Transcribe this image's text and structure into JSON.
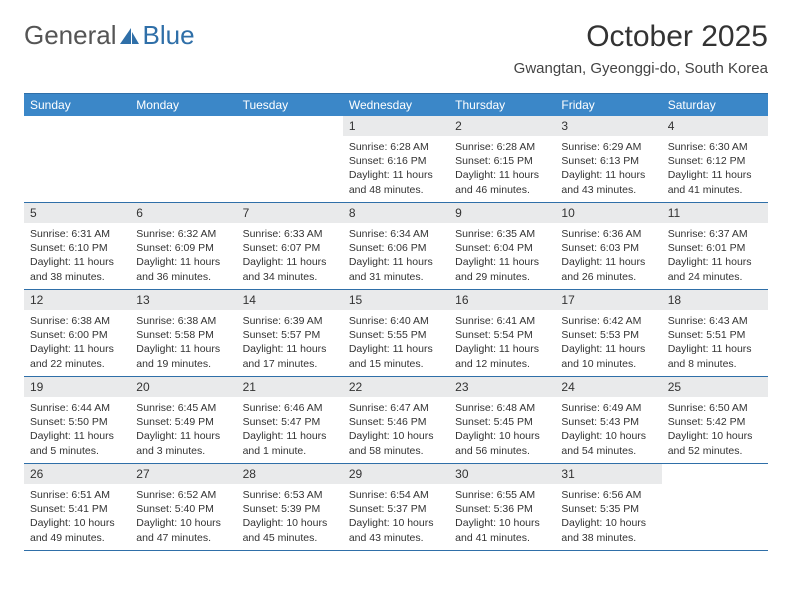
{
  "logo": {
    "general": "General",
    "blue": "Blue"
  },
  "title": "October 2025",
  "location": "Gwangtan, Gyeonggi-do, South Korea",
  "colors": {
    "header_bg": "#3b87c8",
    "border": "#2f6fa8",
    "daynum_bg": "#e9eaeb",
    "text": "#333333",
    "white": "#ffffff"
  },
  "day_names": [
    "Sunday",
    "Monday",
    "Tuesday",
    "Wednesday",
    "Thursday",
    "Friday",
    "Saturday"
  ],
  "weeks": [
    [
      {
        "n": "",
        "sr": "",
        "ss": "",
        "dl": ""
      },
      {
        "n": "",
        "sr": "",
        "ss": "",
        "dl": ""
      },
      {
        "n": "",
        "sr": "",
        "ss": "",
        "dl": ""
      },
      {
        "n": "1",
        "sr": "Sunrise: 6:28 AM",
        "ss": "Sunset: 6:16 PM",
        "dl": "Daylight: 11 hours and 48 minutes."
      },
      {
        "n": "2",
        "sr": "Sunrise: 6:28 AM",
        "ss": "Sunset: 6:15 PM",
        "dl": "Daylight: 11 hours and 46 minutes."
      },
      {
        "n": "3",
        "sr": "Sunrise: 6:29 AM",
        "ss": "Sunset: 6:13 PM",
        "dl": "Daylight: 11 hours and 43 minutes."
      },
      {
        "n": "4",
        "sr": "Sunrise: 6:30 AM",
        "ss": "Sunset: 6:12 PM",
        "dl": "Daylight: 11 hours and 41 minutes."
      }
    ],
    [
      {
        "n": "5",
        "sr": "Sunrise: 6:31 AM",
        "ss": "Sunset: 6:10 PM",
        "dl": "Daylight: 11 hours and 38 minutes."
      },
      {
        "n": "6",
        "sr": "Sunrise: 6:32 AM",
        "ss": "Sunset: 6:09 PM",
        "dl": "Daylight: 11 hours and 36 minutes."
      },
      {
        "n": "7",
        "sr": "Sunrise: 6:33 AM",
        "ss": "Sunset: 6:07 PM",
        "dl": "Daylight: 11 hours and 34 minutes."
      },
      {
        "n": "8",
        "sr": "Sunrise: 6:34 AM",
        "ss": "Sunset: 6:06 PM",
        "dl": "Daylight: 11 hours and 31 minutes."
      },
      {
        "n": "9",
        "sr": "Sunrise: 6:35 AM",
        "ss": "Sunset: 6:04 PM",
        "dl": "Daylight: 11 hours and 29 minutes."
      },
      {
        "n": "10",
        "sr": "Sunrise: 6:36 AM",
        "ss": "Sunset: 6:03 PM",
        "dl": "Daylight: 11 hours and 26 minutes."
      },
      {
        "n": "11",
        "sr": "Sunrise: 6:37 AM",
        "ss": "Sunset: 6:01 PM",
        "dl": "Daylight: 11 hours and 24 minutes."
      }
    ],
    [
      {
        "n": "12",
        "sr": "Sunrise: 6:38 AM",
        "ss": "Sunset: 6:00 PM",
        "dl": "Daylight: 11 hours and 22 minutes."
      },
      {
        "n": "13",
        "sr": "Sunrise: 6:38 AM",
        "ss": "Sunset: 5:58 PM",
        "dl": "Daylight: 11 hours and 19 minutes."
      },
      {
        "n": "14",
        "sr": "Sunrise: 6:39 AM",
        "ss": "Sunset: 5:57 PM",
        "dl": "Daylight: 11 hours and 17 minutes."
      },
      {
        "n": "15",
        "sr": "Sunrise: 6:40 AM",
        "ss": "Sunset: 5:55 PM",
        "dl": "Daylight: 11 hours and 15 minutes."
      },
      {
        "n": "16",
        "sr": "Sunrise: 6:41 AM",
        "ss": "Sunset: 5:54 PM",
        "dl": "Daylight: 11 hours and 12 minutes."
      },
      {
        "n": "17",
        "sr": "Sunrise: 6:42 AM",
        "ss": "Sunset: 5:53 PM",
        "dl": "Daylight: 11 hours and 10 minutes."
      },
      {
        "n": "18",
        "sr": "Sunrise: 6:43 AM",
        "ss": "Sunset: 5:51 PM",
        "dl": "Daylight: 11 hours and 8 minutes."
      }
    ],
    [
      {
        "n": "19",
        "sr": "Sunrise: 6:44 AM",
        "ss": "Sunset: 5:50 PM",
        "dl": "Daylight: 11 hours and 5 minutes."
      },
      {
        "n": "20",
        "sr": "Sunrise: 6:45 AM",
        "ss": "Sunset: 5:49 PM",
        "dl": "Daylight: 11 hours and 3 minutes."
      },
      {
        "n": "21",
        "sr": "Sunrise: 6:46 AM",
        "ss": "Sunset: 5:47 PM",
        "dl": "Daylight: 11 hours and 1 minute."
      },
      {
        "n": "22",
        "sr": "Sunrise: 6:47 AM",
        "ss": "Sunset: 5:46 PM",
        "dl": "Daylight: 10 hours and 58 minutes."
      },
      {
        "n": "23",
        "sr": "Sunrise: 6:48 AM",
        "ss": "Sunset: 5:45 PM",
        "dl": "Daylight: 10 hours and 56 minutes."
      },
      {
        "n": "24",
        "sr": "Sunrise: 6:49 AM",
        "ss": "Sunset: 5:43 PM",
        "dl": "Daylight: 10 hours and 54 minutes."
      },
      {
        "n": "25",
        "sr": "Sunrise: 6:50 AM",
        "ss": "Sunset: 5:42 PM",
        "dl": "Daylight: 10 hours and 52 minutes."
      }
    ],
    [
      {
        "n": "26",
        "sr": "Sunrise: 6:51 AM",
        "ss": "Sunset: 5:41 PM",
        "dl": "Daylight: 10 hours and 49 minutes."
      },
      {
        "n": "27",
        "sr": "Sunrise: 6:52 AM",
        "ss": "Sunset: 5:40 PM",
        "dl": "Daylight: 10 hours and 47 minutes."
      },
      {
        "n": "28",
        "sr": "Sunrise: 6:53 AM",
        "ss": "Sunset: 5:39 PM",
        "dl": "Daylight: 10 hours and 45 minutes."
      },
      {
        "n": "29",
        "sr": "Sunrise: 6:54 AM",
        "ss": "Sunset: 5:37 PM",
        "dl": "Daylight: 10 hours and 43 minutes."
      },
      {
        "n": "30",
        "sr": "Sunrise: 6:55 AM",
        "ss": "Sunset: 5:36 PM",
        "dl": "Daylight: 10 hours and 41 minutes."
      },
      {
        "n": "31",
        "sr": "Sunrise: 6:56 AM",
        "ss": "Sunset: 5:35 PM",
        "dl": "Daylight: 10 hours and 38 minutes."
      },
      {
        "n": "",
        "sr": "",
        "ss": "",
        "dl": ""
      }
    ]
  ]
}
